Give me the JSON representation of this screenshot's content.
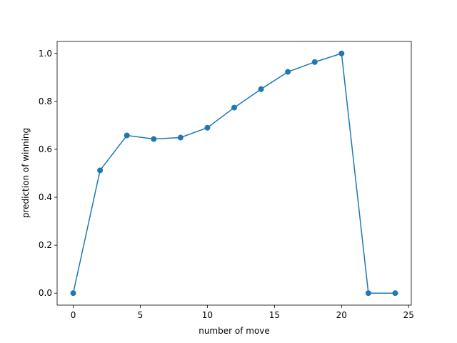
{
  "chart_data": {
    "type": "line",
    "x_label": "number of move",
    "y_label": "prediction of winning",
    "x": [
      0,
      2,
      4,
      6,
      8,
      10,
      12,
      14,
      16,
      18,
      20,
      22,
      24
    ],
    "series": [
      {
        "color": "#1f77b4",
        "values": [
          0,
          0.512,
          0.658,
          0.643,
          0.649,
          0.69,
          0.774,
          0.851,
          0.923,
          0.964,
          1.0,
          0,
          0
        ]
      }
    ],
    "xlim": [
      -1.2,
      25.2
    ],
    "ylim": [
      -0.05,
      1.05
    ],
    "xticks": [
      0,
      5,
      10,
      15,
      20,
      25
    ],
    "yticks": [
      {
        "value": 0,
        "label": "0.0"
      },
      {
        "value": 0.2,
        "label": "0.2"
      },
      {
        "value": 0.4,
        "label": "0.4"
      },
      {
        "value": 0.6,
        "label": "0.6"
      },
      {
        "value": 0.8,
        "label": "0.8"
      },
      {
        "value": 1.0,
        "label": "1.0"
      }
    ]
  }
}
